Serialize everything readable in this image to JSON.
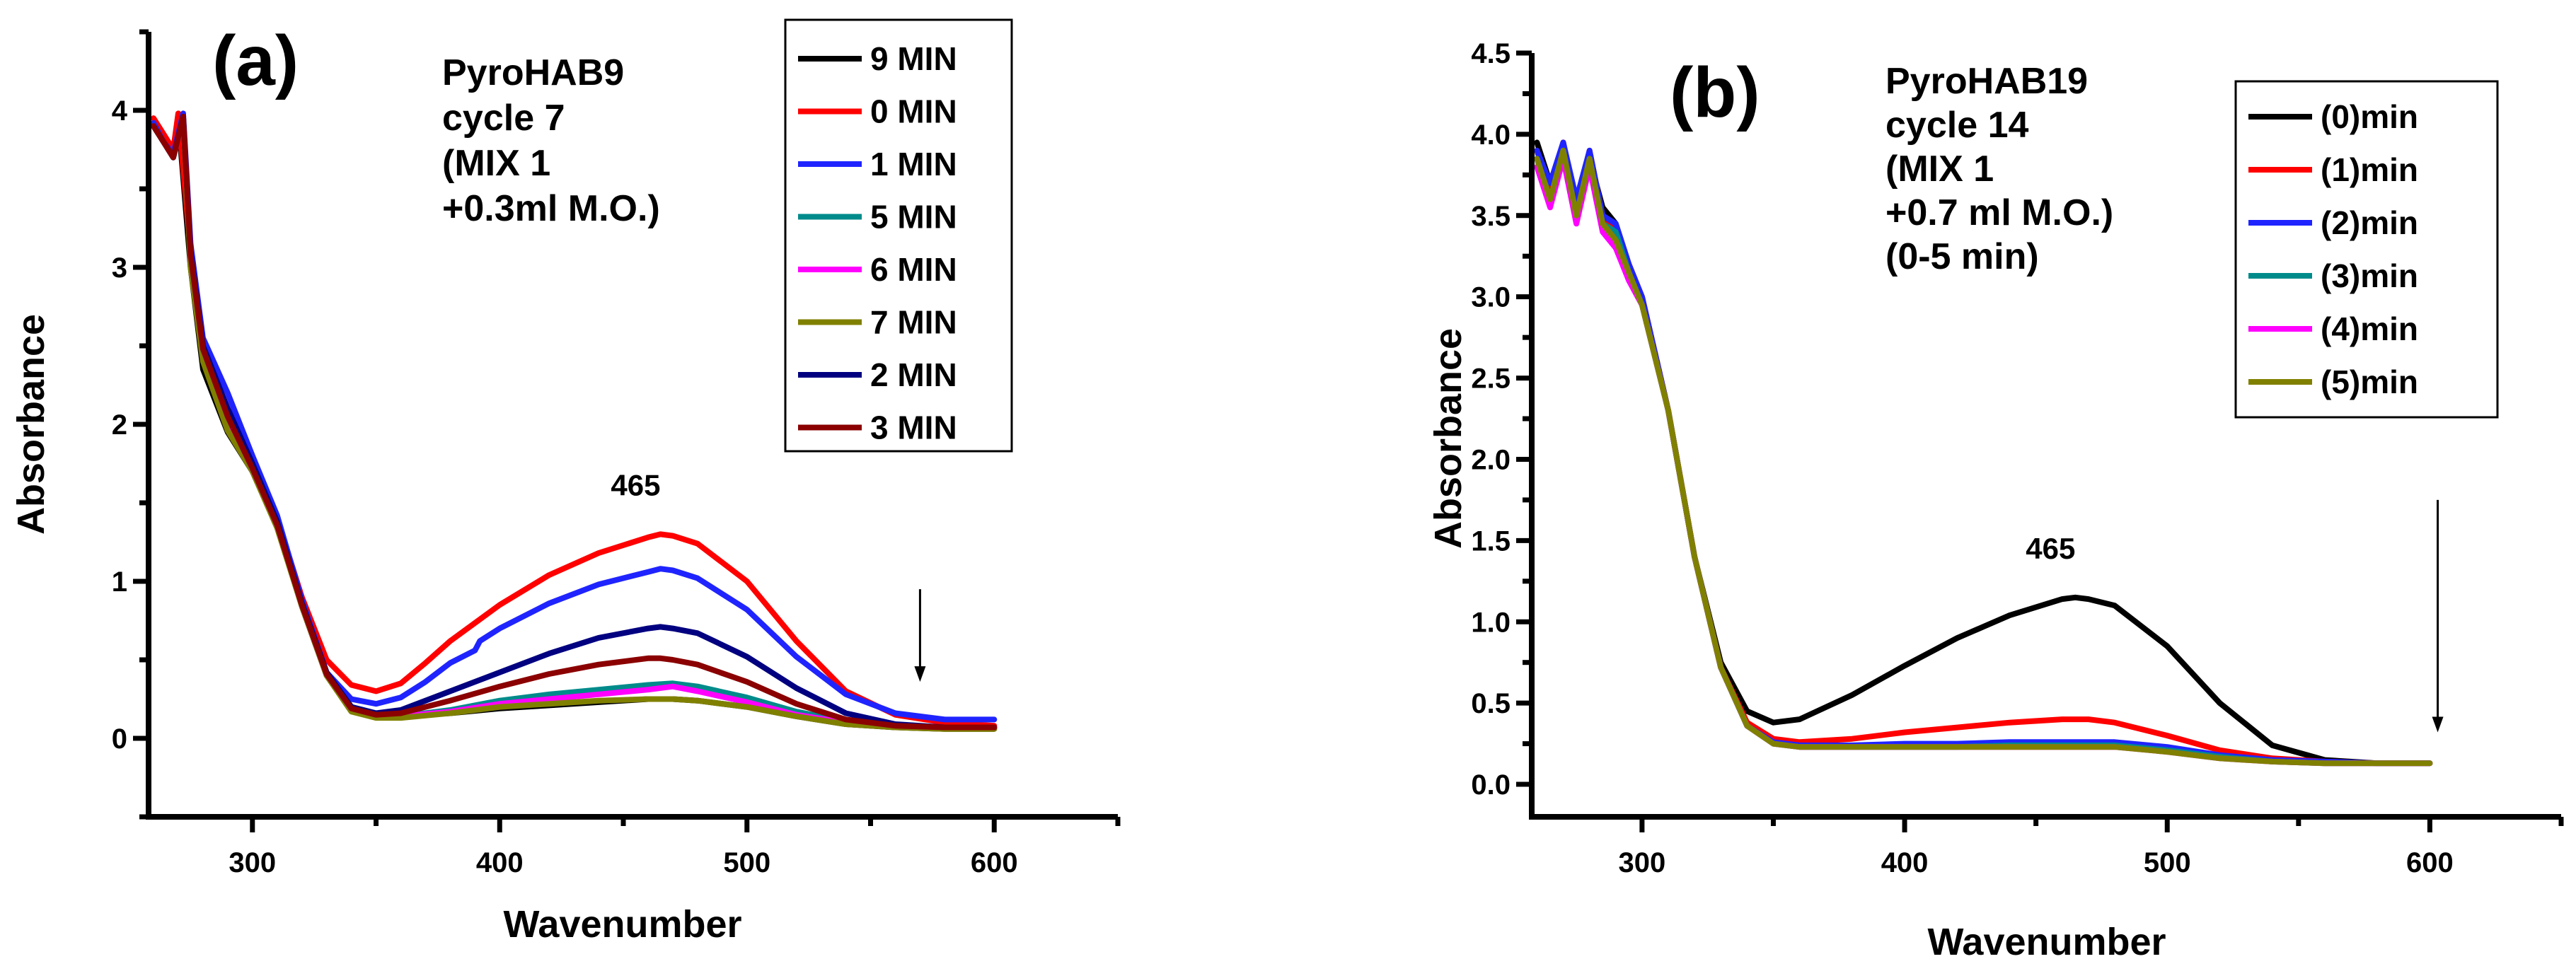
{
  "chart_data": [
    {
      "type": "line",
      "panel_label": "(a)",
      "annotation": [
        "PyroHAB9",
        "cycle 7",
        "(MIX 1",
        "+0.3ml M.O.)"
      ],
      "xlabel": "Wavenumber",
      "ylabel": "Absorbance",
      "xlim": [
        258,
        650
      ],
      "ylim": [
        -0.5,
        4.5
      ],
      "xticks": [
        300,
        400,
        500,
        600
      ],
      "yticks": [
        0,
        1,
        2,
        3,
        4
      ],
      "peak_label": "465",
      "peak_x": 465,
      "arrow_x": 570,
      "arrow_from": 0.95,
      "arrow_to": 0.36,
      "legend_position": "top-right",
      "series": [
        {
          "name": "9 MIN",
          "color": "#000000",
          "x": [
            260,
            264,
            268,
            270,
            275,
            280,
            290,
            300,
            310,
            320,
            330,
            340,
            350,
            360,
            380,
            400,
            420,
            440,
            460,
            470,
            480,
            500,
            520,
            540,
            560,
            580,
            600
          ],
          "y": [
            3.9,
            3.8,
            3.7,
            3.95,
            3.0,
            2.35,
            1.95,
            1.7,
            1.35,
            0.85,
            0.42,
            0.2,
            0.15,
            0.14,
            0.16,
            0.19,
            0.21,
            0.23,
            0.25,
            0.25,
            0.24,
            0.2,
            0.14,
            0.09,
            0.07,
            0.06,
            0.06
          ]
        },
        {
          "name": "0 MIN",
          "color": "#ff0000",
          "x": [
            260,
            264,
            268,
            270,
            275,
            280,
            290,
            300,
            310,
            320,
            330,
            340,
            350,
            360,
            370,
            380,
            400,
            420,
            440,
            460,
            465,
            470,
            480,
            500,
            520,
            540,
            560,
            580,
            600
          ],
          "y": [
            3.95,
            3.85,
            3.75,
            3.98,
            3.1,
            2.5,
            2.1,
            1.75,
            1.4,
            0.9,
            0.5,
            0.34,
            0.3,
            0.35,
            0.48,
            0.62,
            0.85,
            1.04,
            1.18,
            1.28,
            1.3,
            1.29,
            1.24,
            1.0,
            0.62,
            0.3,
            0.15,
            0.1,
            0.08
          ]
        },
        {
          "name": "1 MIN",
          "color": "#1f24ff",
          "x": [
            260,
            264,
            268,
            272,
            275,
            280,
            290,
            300,
            310,
            320,
            330,
            340,
            350,
            360,
            370,
            380,
            390,
            392,
            400,
            420,
            440,
            460,
            465,
            470,
            480,
            500,
            520,
            540,
            560,
            580,
            600
          ],
          "y": [
            3.92,
            3.8,
            3.72,
            3.98,
            3.15,
            2.55,
            2.2,
            1.8,
            1.42,
            0.88,
            0.42,
            0.25,
            0.22,
            0.26,
            0.36,
            0.48,
            0.56,
            0.62,
            0.7,
            0.86,
            0.98,
            1.06,
            1.08,
            1.07,
            1.02,
            0.82,
            0.52,
            0.28,
            0.16,
            0.12,
            0.12
          ]
        },
        {
          "name": "5 MIN",
          "color": "#008b8b",
          "x": [
            260,
            264,
            268,
            272,
            275,
            280,
            290,
            300,
            310,
            320,
            330,
            340,
            350,
            360,
            380,
            400,
            420,
            440,
            460,
            470,
            480,
            500,
            520,
            540,
            560,
            580,
            600
          ],
          "y": [
            3.9,
            3.8,
            3.7,
            3.95,
            3.05,
            2.45,
            2.0,
            1.72,
            1.36,
            0.84,
            0.4,
            0.18,
            0.14,
            0.14,
            0.18,
            0.24,
            0.28,
            0.31,
            0.34,
            0.35,
            0.33,
            0.26,
            0.17,
            0.11,
            0.08,
            0.07,
            0.07
          ]
        },
        {
          "name": "6 MIN",
          "color": "#ff00ff",
          "x": [
            260,
            264,
            268,
            272,
            275,
            280,
            290,
            300,
            310,
            320,
            330,
            340,
            350,
            360,
            380,
            400,
            420,
            440,
            460,
            470,
            480,
            500,
            520,
            540,
            560,
            580,
            600
          ],
          "y": [
            3.9,
            3.8,
            3.7,
            3.95,
            3.05,
            2.42,
            1.98,
            1.7,
            1.35,
            0.84,
            0.4,
            0.18,
            0.14,
            0.14,
            0.17,
            0.22,
            0.25,
            0.28,
            0.31,
            0.33,
            0.3,
            0.23,
            0.15,
            0.1,
            0.08,
            0.07,
            0.07
          ]
        },
        {
          "name": "7 MIN",
          "color": "#808000",
          "x": [
            260,
            264,
            268,
            272,
            275,
            280,
            290,
            300,
            310,
            320,
            330,
            340,
            350,
            360,
            380,
            400,
            420,
            440,
            460,
            470,
            480,
            500,
            520,
            540,
            560,
            580,
            600
          ],
          "y": [
            3.9,
            3.8,
            3.7,
            3.95,
            3.0,
            2.4,
            1.96,
            1.7,
            1.34,
            0.84,
            0.4,
            0.17,
            0.13,
            0.13,
            0.16,
            0.2,
            0.22,
            0.24,
            0.25,
            0.25,
            0.24,
            0.2,
            0.14,
            0.09,
            0.07,
            0.06,
            0.06
          ]
        },
        {
          "name": "2 MIN",
          "color": "#000080",
          "x": [
            260,
            264,
            268,
            272,
            275,
            280,
            290,
            300,
            310,
            320,
            330,
            340,
            350,
            360,
            380,
            400,
            420,
            440,
            460,
            465,
            470,
            480,
            500,
            520,
            540,
            560,
            580,
            600
          ],
          "y": [
            3.9,
            3.8,
            3.7,
            3.96,
            3.1,
            2.5,
            2.1,
            1.75,
            1.38,
            0.86,
            0.42,
            0.2,
            0.16,
            0.18,
            0.3,
            0.42,
            0.54,
            0.64,
            0.7,
            0.71,
            0.7,
            0.67,
            0.52,
            0.32,
            0.16,
            0.09,
            0.07,
            0.07
          ]
        },
        {
          "name": "3 MIN",
          "color": "#8b0000",
          "x": [
            260,
            264,
            268,
            272,
            275,
            280,
            290,
            300,
            310,
            320,
            330,
            340,
            350,
            360,
            380,
            400,
            420,
            440,
            460,
            465,
            470,
            480,
            500,
            520,
            540,
            560,
            580,
            600
          ],
          "y": [
            3.9,
            3.8,
            3.7,
            3.96,
            3.08,
            2.48,
            2.05,
            1.72,
            1.36,
            0.85,
            0.41,
            0.19,
            0.15,
            0.16,
            0.24,
            0.33,
            0.41,
            0.47,
            0.51,
            0.51,
            0.5,
            0.47,
            0.36,
            0.22,
            0.12,
            0.08,
            0.07,
            0.07
          ]
        }
      ]
    },
    {
      "type": "line",
      "panel_label": "(b)",
      "annotation": [
        "PyroHAB19",
        "cycle 14",
        "(MIX 1",
        "+0.7 ml  M.O.)",
        " (0-5 min)"
      ],
      "xlabel": "Wavenumber",
      "ylabel": "Absorbance",
      "xlim": [
        258,
        650
      ],
      "ylim": [
        -0.2,
        4.5
      ],
      "xticks": [
        300,
        400,
        500,
        600
      ],
      "yticks": [
        0.0,
        0.5,
        1.0,
        1.5,
        2.0,
        2.5,
        3.0,
        3.5,
        4.0,
        4.5
      ],
      "peak_label": "465",
      "peak_x": 465,
      "arrow_x": 603,
      "arrow_from": 1.75,
      "arrow_to": 0.32,
      "legend_position": "top-right",
      "series": [
        {
          "name": "(0)min",
          "color": "#000000",
          "x": [
            260,
            265,
            270,
            275,
            280,
            285,
            290,
            295,
            300,
            310,
            320,
            330,
            340,
            350,
            360,
            380,
            400,
            420,
            440,
            460,
            465,
            470,
            480,
            500,
            520,
            540,
            560,
            580,
            600
          ],
          "y": [
            3.95,
            3.7,
            3.9,
            3.6,
            3.85,
            3.55,
            3.45,
            3.2,
            3.0,
            2.3,
            1.4,
            0.75,
            0.45,
            0.38,
            0.4,
            0.55,
            0.73,
            0.9,
            1.04,
            1.14,
            1.15,
            1.14,
            1.1,
            0.85,
            0.5,
            0.24,
            0.15,
            0.13,
            0.13
          ]
        },
        {
          "name": "(1)min",
          "color": "#ff0000",
          "x": [
            260,
            265,
            270,
            275,
            280,
            285,
            290,
            295,
            300,
            310,
            320,
            330,
            340,
            350,
            360,
            380,
            400,
            420,
            440,
            460,
            465,
            470,
            480,
            500,
            520,
            540,
            560,
            580,
            600
          ],
          "y": [
            3.9,
            3.65,
            3.95,
            3.55,
            3.9,
            3.5,
            3.4,
            3.2,
            3.0,
            2.3,
            1.4,
            0.72,
            0.38,
            0.28,
            0.26,
            0.28,
            0.32,
            0.35,
            0.38,
            0.4,
            0.4,
            0.4,
            0.38,
            0.3,
            0.21,
            0.16,
            0.14,
            0.13,
            0.13
          ]
        },
        {
          "name": "(2)min",
          "color": "#1f24ff",
          "x": [
            260,
            265,
            270,
            275,
            280,
            285,
            290,
            295,
            300,
            310,
            320,
            330,
            340,
            350,
            360,
            380,
            400,
            420,
            440,
            460,
            480,
            500,
            520,
            540,
            560,
            580,
            600
          ],
          "y": [
            3.9,
            3.7,
            3.95,
            3.6,
            3.9,
            3.5,
            3.45,
            3.2,
            3.0,
            2.3,
            1.4,
            0.72,
            0.36,
            0.26,
            0.24,
            0.24,
            0.25,
            0.25,
            0.26,
            0.26,
            0.26,
            0.23,
            0.18,
            0.15,
            0.14,
            0.13,
            0.13
          ]
        },
        {
          "name": "(3)min",
          "color": "#008b8b",
          "x": [
            260,
            265,
            270,
            275,
            280,
            285,
            290,
            295,
            300,
            310,
            320,
            330,
            340,
            350,
            360,
            380,
            400,
            420,
            440,
            460,
            480,
            500,
            520,
            540,
            560,
            580,
            600
          ],
          "y": [
            3.85,
            3.6,
            3.9,
            3.5,
            3.85,
            3.45,
            3.4,
            3.15,
            2.95,
            2.3,
            1.4,
            0.72,
            0.36,
            0.25,
            0.23,
            0.23,
            0.23,
            0.23,
            0.24,
            0.24,
            0.24,
            0.21,
            0.17,
            0.14,
            0.13,
            0.13,
            0.13
          ]
        },
        {
          "name": "(4)min",
          "color": "#ff00ff",
          "x": [
            260,
            265,
            270,
            275,
            280,
            285,
            290,
            295,
            300,
            310,
            320,
            330,
            340,
            350,
            360,
            380,
            400,
            420,
            440,
            460,
            480,
            500,
            520,
            540,
            560,
            580,
            600
          ],
          "y": [
            3.8,
            3.55,
            3.85,
            3.45,
            3.8,
            3.4,
            3.3,
            3.1,
            2.95,
            2.3,
            1.4,
            0.72,
            0.36,
            0.25,
            0.23,
            0.23,
            0.23,
            0.23,
            0.23,
            0.23,
            0.23,
            0.2,
            0.16,
            0.14,
            0.13,
            0.13,
            0.13
          ]
        },
        {
          "name": "(5)min",
          "color": "#808000",
          "x": [
            260,
            265,
            270,
            275,
            280,
            285,
            290,
            295,
            300,
            310,
            320,
            330,
            340,
            350,
            360,
            380,
            400,
            420,
            440,
            460,
            480,
            500,
            520,
            540,
            560,
            580,
            600
          ],
          "y": [
            3.85,
            3.6,
            3.9,
            3.5,
            3.85,
            3.45,
            3.35,
            3.15,
            2.95,
            2.3,
            1.4,
            0.72,
            0.36,
            0.25,
            0.23,
            0.23,
            0.23,
            0.23,
            0.23,
            0.23,
            0.23,
            0.2,
            0.16,
            0.14,
            0.13,
            0.13,
            0.13
          ]
        }
      ]
    }
  ]
}
